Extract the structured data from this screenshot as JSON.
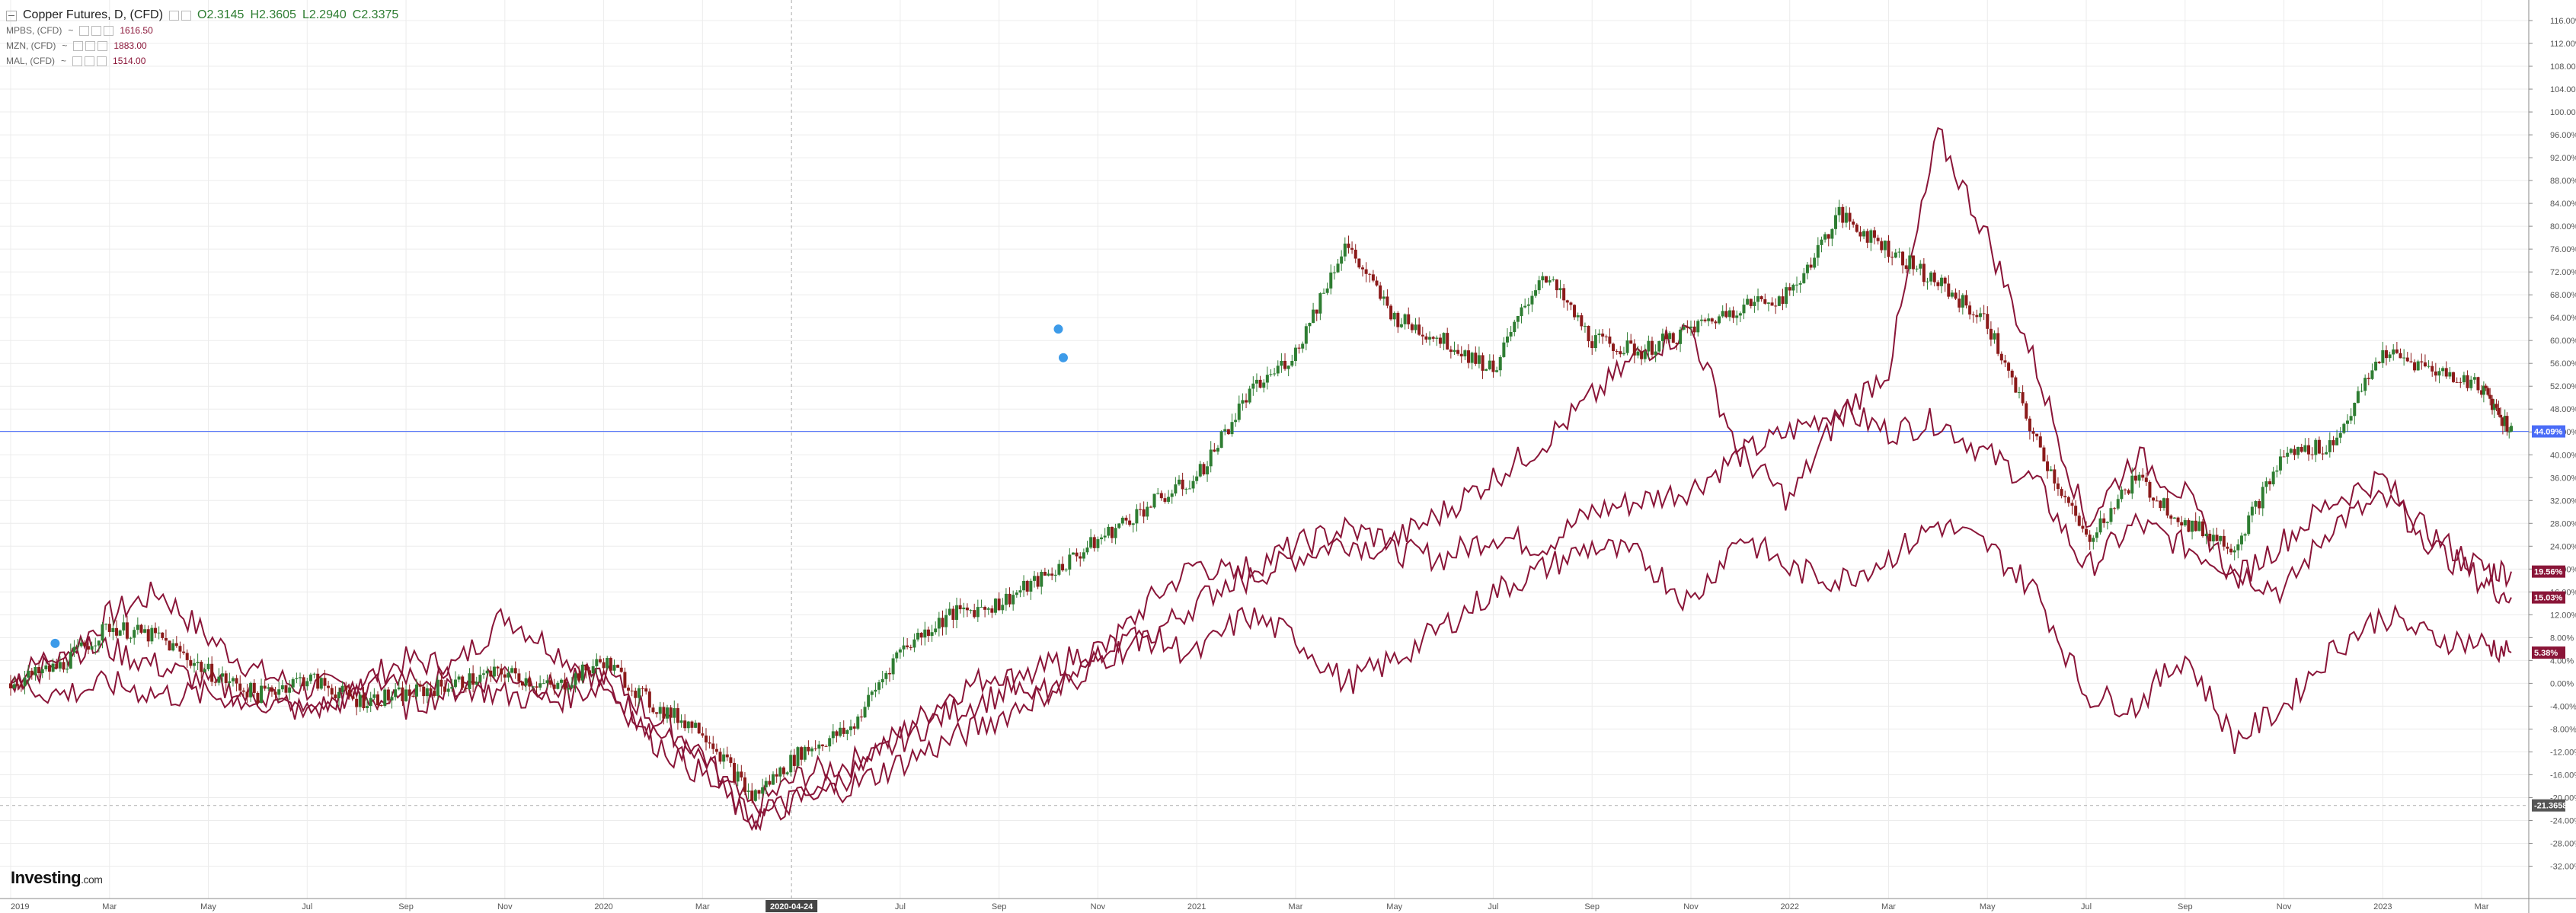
{
  "legend": {
    "main": {
      "title": "Copper Futures, D, (CFD)",
      "o": "O2.3145",
      "h": "H2.3605",
      "l": "L2.2940",
      "c": "C2.3375"
    },
    "series": [
      {
        "name": "MPBS, (CFD)",
        "value": "1616.50"
      },
      {
        "name": "MZN, (CFD)",
        "value": "1883.00"
      },
      {
        "name": "MAL, (CFD)",
        "value": "1514.00"
      }
    ]
  },
  "logo": {
    "text": "Investing",
    "suffix": ".com"
  },
  "crosshair_label": "2020-04-24",
  "colors": {
    "up": "#2e7d32",
    "down": "#8b1a1a",
    "compare": "#8a1538",
    "blue_line": "#4a6cf7",
    "axis": "#999999"
  },
  "chart_data": {
    "type": "line",
    "x_tick_labels": [
      "2019",
      "Mar",
      "May",
      "Jul",
      "Sep",
      "Nov",
      "2020",
      "Mar",
      "2020-04-24",
      "Jul",
      "Sep",
      "Nov",
      "2021",
      "Mar",
      "May",
      "Jul",
      "Sep",
      "Nov",
      "2022",
      "Mar",
      "May",
      "Jul",
      "Sep",
      "Nov",
      "2023",
      "Mar"
    ],
    "x_tick_months": [
      0,
      2,
      4,
      6,
      8,
      10,
      12,
      14,
      15.8,
      18,
      20,
      22,
      24,
      26,
      28,
      30,
      32,
      34,
      36,
      38,
      40,
      42,
      44,
      46,
      48,
      50
    ],
    "y_tick_labels": [
      "116.00%",
      "112.00%",
      "108.00%",
      "104.00%",
      "100.00%",
      "96.00%",
      "92.00%",
      "88.00%",
      "84.00%",
      "80.00%",
      "76.00%",
      "72.00%",
      "68.00%",
      "64.00%",
      "60.00%",
      "56.00%",
      "52.00%",
      "48.00%",
      "44.00%",
      "40.00%",
      "36.00%",
      "32.00%",
      "28.00%",
      "24.00%",
      "20.00%",
      "16.00%",
      "12.00%",
      "8.00%",
      "4.00%",
      "0.00%",
      "-4.00%",
      "-8.00%",
      "-12.00%",
      "-16.00%",
      "-20.00%",
      "-24.00%",
      "-28.00%",
      "-32.00%"
    ],
    "y_ticks": [
      116,
      112,
      108,
      104,
      100,
      96,
      92,
      88,
      84,
      80,
      76,
      72,
      68,
      64,
      60,
      56,
      52,
      48,
      44,
      40,
      36,
      32,
      28,
      24,
      20,
      16,
      12,
      8,
      4,
      0,
      -4,
      -8,
      -12,
      -16,
      -20,
      -24,
      -28,
      -32
    ],
    "ylim": [
      -35,
      118
    ],
    "xlim": [
      0,
      50.8
    ],
    "value_badges": [
      {
        "label": "44.09%",
        "value": 44.09,
        "color": "#4a6cf7"
      },
      {
        "label": "19.56%",
        "value": 19.56,
        "color": "#8a1538"
      },
      {
        "label": "15.03%",
        "value": 15.03,
        "color": "#8a1538"
      },
      {
        "label": "5.38%",
        "value": 5.38,
        "color": "#8a1538"
      },
      {
        "label": "-21.3658",
        "value": -21.3658,
        "color": "#555555"
      }
    ],
    "horizontal_line": {
      "value": 44.09
    },
    "dashed_horizontal_line": {
      "value": -21.3658
    },
    "series": [
      {
        "name": "Copper Futures",
        "style": "candles",
        "x": [
          0,
          1,
          2,
          3,
          4,
          5,
          6,
          7,
          8,
          9,
          10,
          11,
          12,
          13,
          14,
          15,
          16,
          17,
          18,
          19,
          20,
          21,
          22,
          23,
          24,
          25,
          26,
          27,
          28,
          29,
          30,
          31,
          32,
          33,
          34,
          35,
          36,
          37,
          38,
          39,
          40,
          41,
          42,
          43,
          44,
          45,
          46,
          47,
          48,
          49,
          50,
          50.6
        ],
        "y": [
          0,
          3,
          10,
          8,
          2,
          -2,
          1,
          -3,
          -2,
          0,
          2,
          -1,
          4,
          -4,
          -8,
          -20,
          -12,
          -8,
          6,
          12,
          14,
          19,
          25,
          31,
          36,
          50,
          58,
          77,
          64,
          60,
          55,
          72,
          60,
          58,
          62,
          66,
          68,
          82,
          76,
          70,
          63,
          42,
          25,
          36,
          28,
          24,
          40,
          42,
          58,
          55,
          52,
          44
        ]
      },
      {
        "name": "MPBS, (CFD)",
        "style": "line",
        "x": [
          0,
          1,
          2,
          3,
          4,
          5,
          6,
          7,
          8,
          9,
          10,
          11,
          12,
          13,
          14,
          15,
          16,
          17,
          18,
          19,
          20,
          21,
          22,
          23,
          24,
          25,
          26,
          27,
          28,
          29,
          30,
          31,
          32,
          33,
          34,
          35,
          36,
          37,
          38,
          39,
          40,
          41,
          42,
          43,
          44,
          45,
          46,
          47,
          48,
          49,
          50,
          50.6
        ],
        "y": [
          0,
          4,
          12,
          16,
          8,
          2,
          -1,
          0,
          4,
          3,
          12,
          6,
          0,
          -8,
          -14,
          -22,
          -16,
          -14,
          -9,
          -2,
          2,
          -3,
          4,
          14,
          21,
          18,
          22,
          25,
          23,
          22,
          26,
          24,
          30,
          32,
          34,
          40,
          44,
          48,
          44,
          46,
          40,
          35,
          20,
          28,
          24,
          20,
          16,
          28,
          32,
          26,
          20,
          19.56
        ]
      },
      {
        "name": "MZN, (CFD)",
        "style": "line",
        "x": [
          0,
          1,
          2,
          3,
          4,
          5,
          6,
          7,
          8,
          9,
          10,
          11,
          12,
          13,
          14,
          15,
          16,
          17,
          18,
          19,
          20,
          21,
          22,
          23,
          24,
          25,
          26,
          27,
          28,
          29,
          30,
          31,
          32,
          33,
          34,
          35,
          36,
          37,
          38,
          39,
          40,
          41,
          42,
          43,
          44,
          45,
          46,
          47,
          48,
          49,
          50,
          50.6
        ],
        "y": [
          0,
          6,
          6,
          3,
          0,
          -3,
          -5,
          -2,
          -4,
          -1,
          2,
          -1,
          2,
          -6,
          -12,
          -24,
          -20,
          -16,
          -10,
          -5,
          -2,
          3,
          6,
          8,
          14,
          20,
          24,
          27,
          25,
          30,
          36,
          42,
          50,
          58,
          62,
          40,
          32,
          47,
          55,
          96,
          78,
          55,
          28,
          40,
          33,
          18,
          25,
          32,
          36,
          24,
          18,
          15.03
        ]
      },
      {
        "name": "MAL, (CFD)",
        "style": "line",
        "x": [
          0,
          1,
          2,
          3,
          4,
          5,
          6,
          7,
          8,
          9,
          10,
          11,
          12,
          13,
          14,
          15,
          16,
          17,
          18,
          19,
          20,
          21,
          22,
          23,
          24,
          25,
          26,
          27,
          28,
          29,
          30,
          31,
          32,
          33,
          34,
          35,
          36,
          37,
          38,
          39,
          40,
          41,
          42,
          43,
          44,
          45,
          46,
          47,
          48,
          49,
          50,
          50.6
        ],
        "y": [
          0,
          -2,
          0,
          -2,
          -2,
          -3,
          -4,
          -2,
          2,
          0,
          -2,
          -3,
          0,
          -10,
          -16,
          -24,
          -20,
          -18,
          -14,
          -10,
          -6,
          -1,
          4,
          8,
          5,
          12,
          8,
          0,
          4,
          10,
          16,
          20,
          24,
          22,
          14,
          26,
          20,
          18,
          22,
          28,
          24,
          16,
          -2,
          -4,
          5,
          -10,
          -4,
          6,
          12,
          8,
          7,
          5.38
        ]
      }
    ]
  }
}
